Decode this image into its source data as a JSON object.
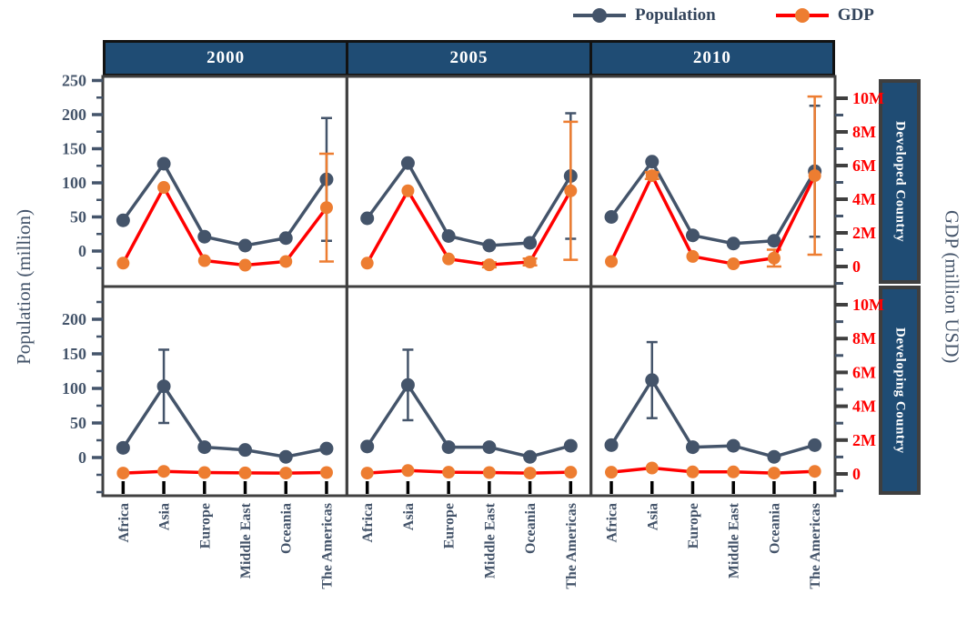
{
  "legend": {
    "items": [
      "Population",
      "GDP"
    ]
  },
  "colors": {
    "population": "#44546A",
    "gdp_marker": "#ED7D31",
    "gdp_line": "#FF0000",
    "gdp_tick_text": "#FF0000",
    "axis_text": "#44546A",
    "header_bg": "#1F4C74",
    "header_text": "#FFFFFF",
    "panel_border": "#404040",
    "border_dark": "#3F3F3F",
    "x_tick": "#000000",
    "legend_text": "#34455C"
  },
  "chart_data": {
    "type": "line",
    "title": "",
    "categories": [
      "Africa",
      "Asia",
      "Europe",
      "Middle East",
      "Oceania",
      "The Americas"
    ],
    "columns": [
      "2000",
      "2005",
      "2010"
    ],
    "rows": [
      "Developed Country",
      "Developing Country"
    ],
    "series_names": [
      "Population",
      "GDP"
    ],
    "population_axis": {
      "label": "Population (million)",
      "ticks_top": [
        0,
        50,
        100,
        150,
        200,
        250
      ],
      "ticks_bottom": [
        0,
        50,
        100,
        150,
        200
      ],
      "range_top": [
        0,
        250
      ],
      "range_bottom": [
        0,
        200
      ],
      "minor_step": 25
    },
    "gdp_axis": {
      "label": "GDP (million USD)",
      "ticks": [
        "0",
        "2M",
        "4M",
        "6M",
        "8M",
        "10M"
      ],
      "tick_values_M": [
        0,
        2,
        4,
        6,
        8,
        10
      ],
      "range_M": [
        0,
        10
      ],
      "minor_step_M": 1
    },
    "grid": "off",
    "legend_position": "top-right",
    "panels": [
      {
        "row": "Developed Country",
        "year": "2000",
        "population": [
          45,
          128,
          21,
          8,
          19,
          105
        ],
        "population_err": [
          0,
          0,
          2,
          2,
          0,
          90
        ],
        "gdp_M": [
          0.2,
          4.7,
          0.35,
          0.08,
          0.3,
          3.5
        ],
        "gdp_err_M": [
          0,
          0,
          0,
          0,
          0,
          3.2
        ]
      },
      {
        "row": "Developed Country",
        "year": "2005",
        "population": [
          48,
          129,
          22,
          8,
          12,
          110
        ],
        "population_err": [
          0,
          0,
          3,
          2,
          5,
          92
        ],
        "gdp_M": [
          0.2,
          4.5,
          0.45,
          0.1,
          0.27,
          4.5
        ],
        "gdp_err_M": [
          0,
          0,
          0,
          0.15,
          0.2,
          4.1
        ]
      },
      {
        "row": "Developed Country",
        "year": "2010",
        "population": [
          50,
          131,
          23,
          11,
          15,
          117
        ],
        "population_err": [
          0,
          0,
          2,
          2,
          3,
          96
        ],
        "gdp_M": [
          0.3,
          5.4,
          0.6,
          0.16,
          0.5,
          5.4
        ],
        "gdp_err_M": [
          0,
          0.2,
          0,
          0,
          0.5,
          4.7
        ]
      },
      {
        "row": "Developing Country",
        "year": "2000",
        "population": [
          14,
          103,
          15,
          11,
          1,
          13
        ],
        "population_err": [
          2,
          53,
          2,
          2,
          0,
          2
        ],
        "gdp_M": [
          0.05,
          0.15,
          0.08,
          0.06,
          0.05,
          0.08
        ],
        "gdp_err_M": [
          0,
          0,
          0,
          0,
          0,
          0
        ]
      },
      {
        "row": "Developing Country",
        "year": "2005",
        "population": [
          16,
          105,
          15,
          15,
          1,
          17
        ],
        "population_err": [
          3,
          51,
          3,
          3,
          0,
          3
        ],
        "gdp_M": [
          0.05,
          0.2,
          0.1,
          0.08,
          0.05,
          0.1
        ],
        "gdp_err_M": [
          0,
          0,
          0,
          0,
          0,
          0
        ]
      },
      {
        "row": "Developing Country",
        "year": "2010",
        "population": [
          18,
          112,
          15,
          17,
          1,
          18
        ],
        "population_err": [
          2,
          55,
          3,
          3,
          0,
          3
        ],
        "gdp_M": [
          0.1,
          0.35,
          0.12,
          0.12,
          0.05,
          0.15
        ],
        "gdp_err_M": [
          0,
          0,
          0,
          0,
          0,
          0
        ]
      }
    ]
  }
}
